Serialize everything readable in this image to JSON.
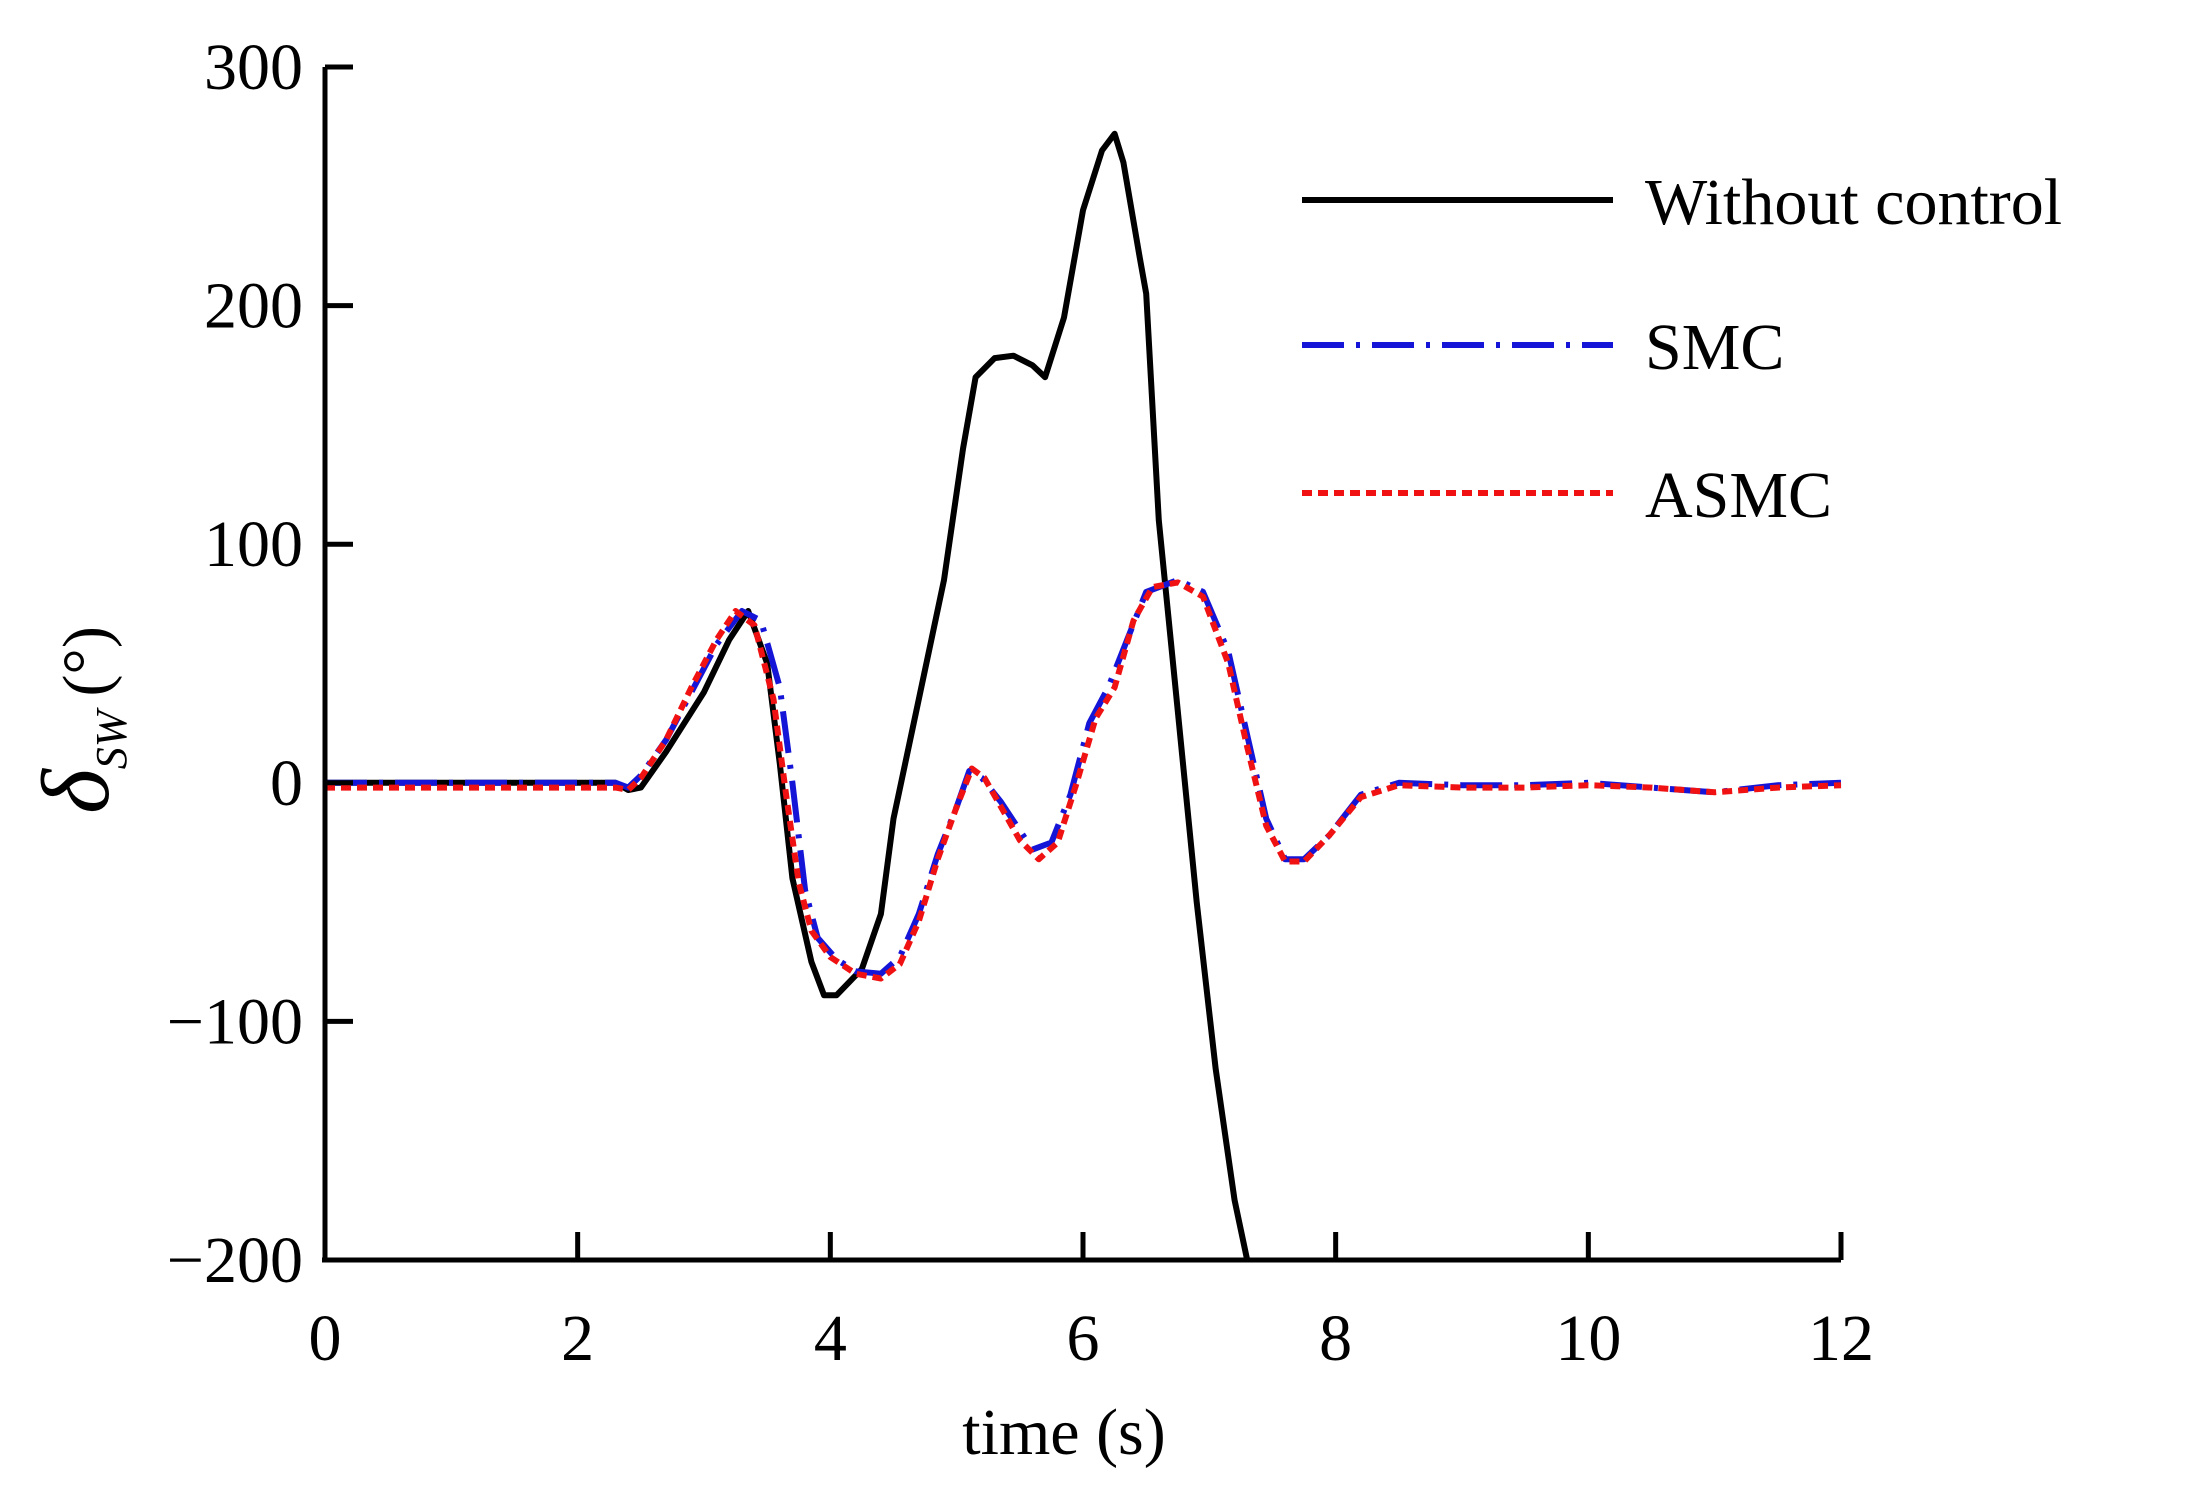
{
  "chart_data": {
    "type": "line",
    "xlabel": "time (s)",
    "ylabel": {
      "symbol": "δ",
      "subscript": "SW",
      "unit": "(°)"
    },
    "xlim": [
      0,
      12
    ],
    "ylim": [
      -200,
      300
    ],
    "xticks": [
      0,
      2,
      4,
      6,
      8,
      10,
      12
    ],
    "yticks": [
      300,
      200,
      100,
      0,
      -100,
      -200
    ],
    "xtick_labels": [
      "0",
      "2",
      "4",
      "6",
      "8",
      "10",
      "12"
    ],
    "ytick_labels": [
      "300",
      "200",
      "100",
      "0",
      "−100",
      "−200"
    ],
    "grid": false,
    "legend_position": "top-right",
    "series": [
      {
        "name": "Without control",
        "color": "#000000",
        "style": "solid",
        "points": [
          [
            0,
            0
          ],
          [
            1,
            0
          ],
          [
            2.3,
            0
          ],
          [
            2.4,
            -3
          ],
          [
            2.5,
            -2
          ],
          [
            2.7,
            13
          ],
          [
            3.0,
            38
          ],
          [
            3.2,
            60
          ],
          [
            3.35,
            72
          ],
          [
            3.5,
            50
          ],
          [
            3.6,
            8
          ],
          [
            3.7,
            -40
          ],
          [
            3.85,
            -75
          ],
          [
            3.95,
            -89
          ],
          [
            4.05,
            -89
          ],
          [
            4.25,
            -78
          ],
          [
            4.4,
            -55
          ],
          [
            4.5,
            -15
          ],
          [
            4.7,
            35
          ],
          [
            4.9,
            85
          ],
          [
            5.05,
            140
          ],
          [
            5.15,
            170
          ],
          [
            5.3,
            178
          ],
          [
            5.45,
            179
          ],
          [
            5.6,
            175
          ],
          [
            5.7,
            170
          ],
          [
            5.85,
            195
          ],
          [
            6.0,
            240
          ],
          [
            6.15,
            265
          ],
          [
            6.25,
            272
          ],
          [
            6.32,
            260
          ],
          [
            6.45,
            220
          ],
          [
            6.5,
            205
          ],
          [
            6.6,
            110
          ],
          [
            6.75,
            30
          ],
          [
            6.9,
            -50
          ],
          [
            7.05,
            -120
          ],
          [
            7.2,
            -175
          ],
          [
            7.3,
            -200
          ]
        ]
      },
      {
        "name": "SMC",
        "color": "#1515d8",
        "style": "dash-dot",
        "points": [
          [
            0,
            0
          ],
          [
            1,
            0
          ],
          [
            2.3,
            0
          ],
          [
            2.4,
            -2
          ],
          [
            2.5,
            3
          ],
          [
            2.7,
            18
          ],
          [
            2.9,
            38
          ],
          [
            3.1,
            58
          ],
          [
            3.3,
            72
          ],
          [
            3.45,
            68
          ],
          [
            3.6,
            40
          ],
          [
            3.7,
            0
          ],
          [
            3.8,
            -45
          ],
          [
            3.9,
            -65
          ],
          [
            4.05,
            -74
          ],
          [
            4.2,
            -79
          ],
          [
            4.4,
            -80
          ],
          [
            4.55,
            -73
          ],
          [
            4.7,
            -55
          ],
          [
            4.85,
            -30
          ],
          [
            5.0,
            -10
          ],
          [
            5.1,
            5
          ],
          [
            5.2,
            2
          ],
          [
            5.35,
            -8
          ],
          [
            5.5,
            -20
          ],
          [
            5.6,
            -28
          ],
          [
            5.75,
            -25
          ],
          [
            5.9,
            -5
          ],
          [
            6.05,
            25
          ],
          [
            6.2,
            40
          ],
          [
            6.35,
            60
          ],
          [
            6.5,
            80
          ],
          [
            6.75,
            85
          ],
          [
            6.95,
            80
          ],
          [
            7.15,
            55
          ],
          [
            7.3,
            20
          ],
          [
            7.45,
            -15
          ],
          [
            7.6,
            -32
          ],
          [
            7.75,
            -32
          ],
          [
            7.95,
            -22
          ],
          [
            8.2,
            -5
          ],
          [
            8.5,
            0
          ],
          [
            9,
            -1
          ],
          [
            9.5,
            -1
          ],
          [
            10,
            0
          ],
          [
            10.5,
            -2
          ],
          [
            11,
            -4
          ],
          [
            11.5,
            -1
          ],
          [
            12,
            0
          ]
        ]
      },
      {
        "name": "ASMC",
        "color": "#f01212",
        "style": "dotted",
        "points": [
          [
            0,
            -2
          ],
          [
            1,
            -2
          ],
          [
            2.3,
            -2
          ],
          [
            2.4,
            -3
          ],
          [
            2.5,
            2
          ],
          [
            2.7,
            18
          ],
          [
            2.9,
            40
          ],
          [
            3.1,
            60
          ],
          [
            3.25,
            72
          ],
          [
            3.4,
            66
          ],
          [
            3.55,
            35
          ],
          [
            3.65,
            -5
          ],
          [
            3.75,
            -42
          ],
          [
            3.85,
            -62
          ],
          [
            4.0,
            -73
          ],
          [
            4.2,
            -80
          ],
          [
            4.4,
            -82
          ],
          [
            4.55,
            -76
          ],
          [
            4.7,
            -58
          ],
          [
            4.85,
            -32
          ],
          [
            5.0,
            -10
          ],
          [
            5.12,
            6
          ],
          [
            5.22,
            2
          ],
          [
            5.35,
            -10
          ],
          [
            5.5,
            -24
          ],
          [
            5.65,
            -32
          ],
          [
            5.8,
            -25
          ],
          [
            5.95,
            0
          ],
          [
            6.1,
            27
          ],
          [
            6.25,
            40
          ],
          [
            6.4,
            68
          ],
          [
            6.55,
            82
          ],
          [
            6.75,
            84
          ],
          [
            6.95,
            78
          ],
          [
            7.15,
            50
          ],
          [
            7.3,
            15
          ],
          [
            7.45,
            -18
          ],
          [
            7.6,
            -33
          ],
          [
            7.75,
            -33
          ],
          [
            7.95,
            -22
          ],
          [
            8.2,
            -6
          ],
          [
            8.5,
            -1
          ],
          [
            9,
            -2
          ],
          [
            9.5,
            -2
          ],
          [
            10,
            -1
          ],
          [
            10.5,
            -2
          ],
          [
            11,
            -4
          ],
          [
            11.5,
            -2
          ],
          [
            12,
            -1
          ]
        ]
      }
    ]
  }
}
